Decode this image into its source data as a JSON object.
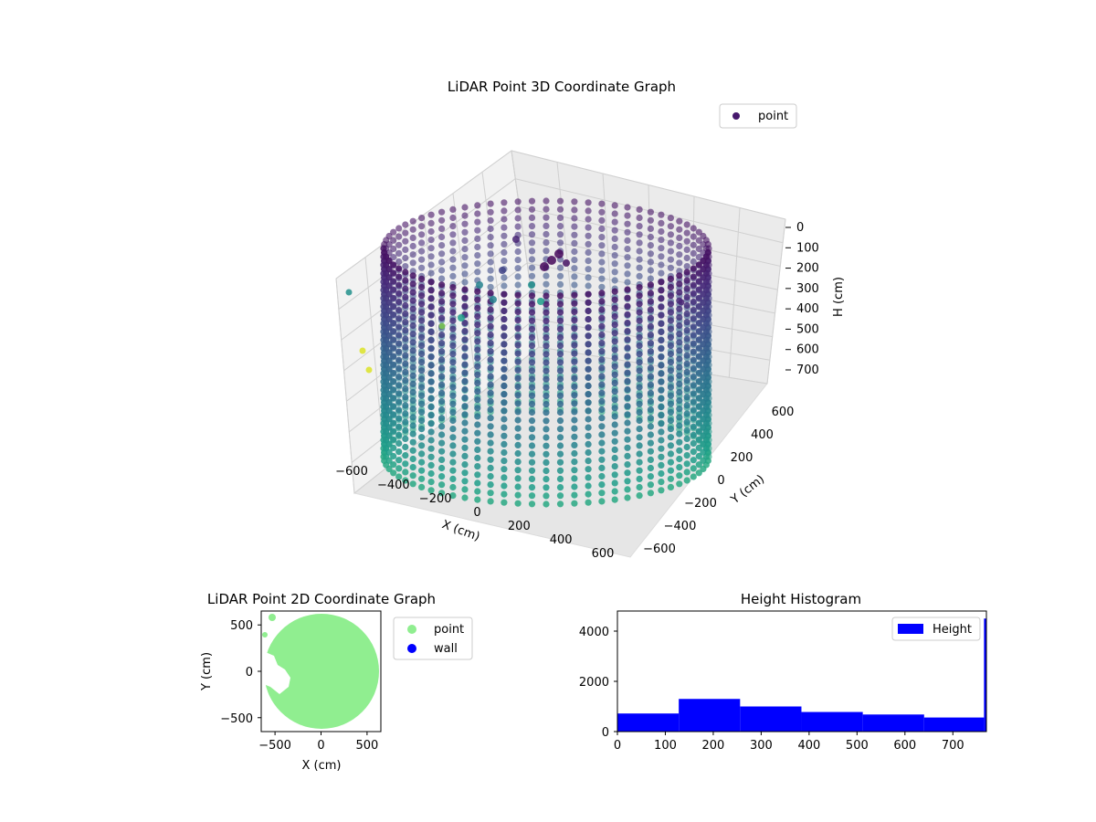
{
  "chart_data": [
    {
      "type": "scatter3d",
      "title": "LiDAR Point 3D Coordinate Graph",
      "xlabel": "X (cm)",
      "ylabel": "Y (cm)",
      "zlabel": "H (cm)",
      "x_ticks": [
        "−600",
        "−400",
        "−200",
        "0",
        "200",
        "400",
        "600"
      ],
      "y_ticks": [
        "600",
        "400",
        "200",
        "0",
        "−200",
        "−400",
        "−600"
      ],
      "z_ticks": [
        "0",
        "100",
        "200",
        "300",
        "400",
        "500",
        "600",
        "700"
      ],
      "xlim": [
        -650,
        650
      ],
      "ylim": [
        -650,
        650
      ],
      "zlim": [
        0,
        770
      ],
      "z_inverted": true,
      "colormap": "viridis",
      "legend": {
        "placement": "top-right",
        "entries": [
          {
            "name": "point",
            "color": "#46186d"
          }
        ]
      },
      "cylinder": {
        "radius": 600,
        "height_range": [
          0,
          770
        ]
      }
    },
    {
      "type": "scatter",
      "title": "LiDAR Point 2D Coordinate Graph",
      "xlabel": "X (cm)",
      "ylabel": "Y (cm)",
      "x_ticks": [
        "−500",
        "0",
        "500"
      ],
      "y_ticks": [
        "500",
        "0",
        "−500"
      ],
      "xlim": [
        -650,
        650
      ],
      "ylim": [
        -650,
        650
      ],
      "legend": {
        "placement": "right-outside",
        "entries": [
          {
            "name": "point",
            "color": "#90ee90"
          },
          {
            "name": "wall",
            "color": "#0000ff"
          }
        ]
      },
      "point_region": {
        "radius": 620
      }
    },
    {
      "type": "histogram",
      "title": "Height Histogram",
      "legend": {
        "placement": "top-right",
        "entries": [
          {
            "name": "Height",
            "color": "#0000ff"
          }
        ]
      },
      "x_ticks": [
        "0",
        "100",
        "200",
        "300",
        "400",
        "500",
        "600",
        "700"
      ],
      "y_ticks": [
        "0",
        "2000",
        "4000"
      ],
      "xlim": [
        0,
        770
      ],
      "ylim": [
        0,
        4800
      ],
      "bins": [
        {
          "x0": 0,
          "x1": 128,
          "count": 720
        },
        {
          "x0": 128,
          "x1": 256,
          "count": 1300
        },
        {
          "x0": 256,
          "x1": 384,
          "count": 1000
        },
        {
          "x0": 384,
          "x1": 512,
          "count": 780
        },
        {
          "x0": 512,
          "x1": 640,
          "count": 680
        },
        {
          "x0": 640,
          "x1": 765,
          "count": 560
        },
        {
          "x0": 765,
          "x1": 770,
          "count": 4500
        }
      ],
      "color": "#0000ff"
    }
  ]
}
